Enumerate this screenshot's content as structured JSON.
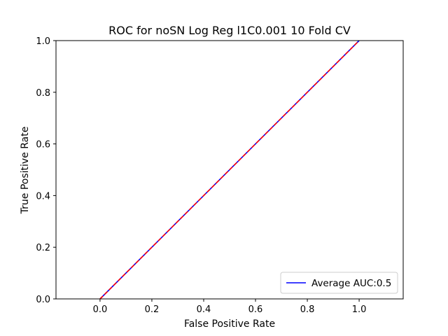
{
  "chart_data": {
    "type": "line",
    "title": "ROC for noSN Log Reg l1C0.001 10 Fold CV",
    "xlabel": "False Positive Rate",
    "ylabel": "True Positive Rate",
    "xlim": [
      -0.17,
      1.17
    ],
    "ylim": [
      0.0,
      1.0
    ],
    "xticks": [
      0.0,
      0.2,
      0.4,
      0.6,
      0.8,
      1.0
    ],
    "xtick_labels": [
      "0.0",
      "0.2",
      "0.4",
      "0.6",
      "0.8",
      "1.0"
    ],
    "yticks": [
      0.0,
      0.2,
      0.4,
      0.6,
      0.8,
      1.0
    ],
    "ytick_labels": [
      "0.0",
      "0.2",
      "0.4",
      "0.6",
      "0.8",
      "1.0"
    ],
    "grid": false,
    "legend_position": "lower-right",
    "series": [
      {
        "name": "Average AUC:0.5",
        "color": "#0000ff",
        "style": "solid",
        "x": [
          0.0,
          1.0
        ],
        "y": [
          0.0,
          1.0
        ]
      },
      {
        "color": "#ff0000",
        "style": "dashed",
        "x": [
          0.0,
          1.0
        ],
        "y": [
          0.0,
          1.0
        ]
      }
    ]
  }
}
